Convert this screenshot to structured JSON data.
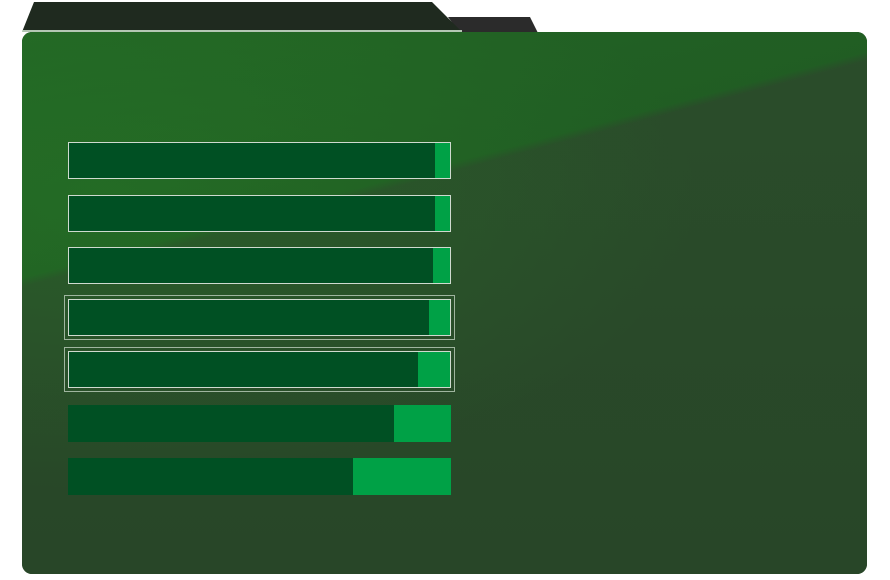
{
  "theme": {
    "folder_color": "#2b4a2b",
    "highlight_color": "#226624",
    "bar_track_color": "#005023",
    "bar_fill_color": "#00a146",
    "tab_color": "#1f2a1f"
  },
  "progress_bars": [
    {
      "fill_fraction": 0.04,
      "outlined": true,
      "focused": false
    },
    {
      "fill_fraction": 0.04,
      "outlined": true,
      "focused": false
    },
    {
      "fill_fraction": 0.045,
      "outlined": true,
      "focused": false
    },
    {
      "fill_fraction": 0.055,
      "outlined": true,
      "focused": true
    },
    {
      "fill_fraction": 0.085,
      "outlined": true,
      "focused": true
    },
    {
      "fill_fraction": 0.15,
      "outlined": false,
      "focused": false
    },
    {
      "fill_fraction": 0.255,
      "outlined": false,
      "focused": false
    }
  ]
}
